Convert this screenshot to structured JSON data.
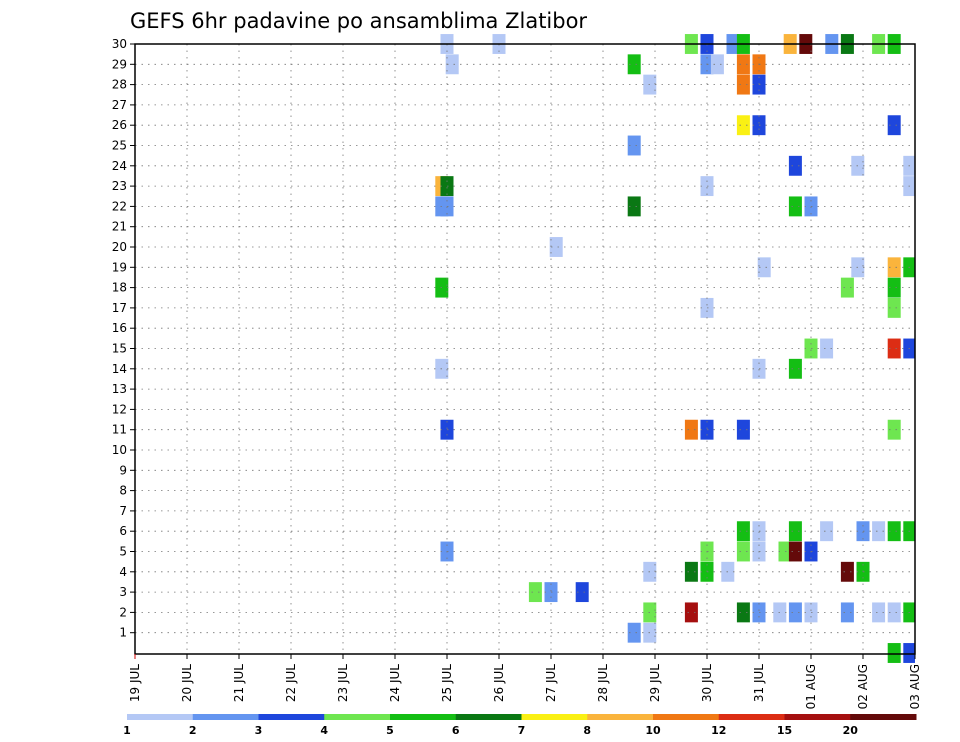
{
  "chart_data": {
    "type": "heatmap",
    "title": "GEFS 6hr padavine po ansamblima Zlatibor",
    "xlabel": "",
    "ylabel": "",
    "x_tick_labels": [
      "19 JUL",
      "20 JUL",
      "21 JUL",
      "22 JUL",
      "23 JUL",
      "24 JUL",
      "25 JUL",
      "26 JUL",
      "27 JUL",
      "28 JUL",
      "29 JUL",
      "30 JUL",
      "31 JUL",
      "01 AUG",
      "02 AUG",
      "03 AUG"
    ],
    "y_tick_labels": [
      "1",
      "2",
      "3",
      "4",
      "5",
      "6",
      "7",
      "8",
      "9",
      "10",
      "11",
      "12",
      "13",
      "14",
      "15",
      "16",
      "17",
      "18",
      "19",
      "20",
      "21",
      "22",
      "23",
      "24",
      "25",
      "26",
      "27",
      "28",
      "29",
      "30"
    ],
    "ylim": [
      0,
      30
    ],
    "grid": true,
    "colorbar": {
      "colors": [
        "#b4c8f5",
        "#6495f0",
        "#1e46dc",
        "#6ee650",
        "#14be14",
        "#0a7814",
        "#faf014",
        "#fab43c",
        "#f07814",
        "#dc2d14",
        "#a50f0f",
        "#640a0a"
      ],
      "labels": [
        "1",
        "2",
        "3",
        "4",
        "5",
        "6",
        "7",
        "8",
        "10",
        "12",
        "15",
        "20"
      ]
    },
    "cells": [
      {
        "day": 6.0,
        "member": 30,
        "level": 1
      },
      {
        "day": 7.0,
        "member": 30,
        "level": 1
      },
      {
        "day": 6.1,
        "member": 29,
        "level": 1
      },
      {
        "day": 8.1,
        "member": 20,
        "level": 1
      },
      {
        "day": 5.9,
        "member": 23,
        "level": 8
      },
      {
        "day": 6.0,
        "member": 23,
        "level": 6
      },
      {
        "day": 5.9,
        "member": 22,
        "level": 2
      },
      {
        "day": 6.0,
        "member": 22,
        "level": 2
      },
      {
        "day": 5.9,
        "member": 18,
        "level": 5
      },
      {
        "day": 5.9,
        "member": 14,
        "level": 1
      },
      {
        "day": 6.0,
        "member": 11,
        "level": 3
      },
      {
        "day": 6.0,
        "member": 5,
        "level": 2
      },
      {
        "day": 7.7,
        "member": 3,
        "level": 4
      },
      {
        "day": 8.0,
        "member": 3,
        "level": 2
      },
      {
        "day": 8.6,
        "member": 3,
        "level": 3
      },
      {
        "day": 9.6,
        "member": 29,
        "level": 5
      },
      {
        "day": 9.9,
        "member": 28,
        "level": 1
      },
      {
        "day": 9.6,
        "member": 25,
        "level": 2
      },
      {
        "day": 9.6,
        "member": 22,
        "level": 6
      },
      {
        "day": 9.9,
        "member": 4,
        "level": 1
      },
      {
        "day": 9.9,
        "member": 2,
        "level": 4
      },
      {
        "day": 9.6,
        "member": 1,
        "level": 2
      },
      {
        "day": 9.9,
        "member": 1,
        "level": 1
      },
      {
        "day": 10.7,
        "member": 30,
        "level": 4
      },
      {
        "day": 11.0,
        "member": 30,
        "level": 3
      },
      {
        "day": 11.0,
        "member": 29,
        "level": 2
      },
      {
        "day": 11.2,
        "member": 29,
        "level": 1
      },
      {
        "day": 11.0,
        "member": 23,
        "level": 1
      },
      {
        "day": 11.0,
        "member": 17,
        "level": 1
      },
      {
        "day": 10.7,
        "member": 11,
        "level": 9
      },
      {
        "day": 11.0,
        "member": 11,
        "level": 3
      },
      {
        "day": 11.0,
        "member": 5,
        "level": 4
      },
      {
        "day": 10.7,
        "member": 4,
        "level": 6
      },
      {
        "day": 11.0,
        "member": 4,
        "level": 5
      },
      {
        "day": 11.4,
        "member": 4,
        "level": 1
      },
      {
        "day": 10.7,
        "member": 2,
        "level": 11
      },
      {
        "day": 11.5,
        "member": 30,
        "level": 2
      },
      {
        "day": 11.7,
        "member": 30,
        "level": 5
      },
      {
        "day": 11.7,
        "member": 29,
        "level": 9
      },
      {
        "day": 12.0,
        "member": 29,
        "level": 9
      },
      {
        "day": 11.7,
        "member": 28,
        "level": 9
      },
      {
        "day": 12.0,
        "member": 28,
        "level": 3
      },
      {
        "day": 11.7,
        "member": 26,
        "level": 7
      },
      {
        "day": 12.0,
        "member": 26,
        "level": 3
      },
      {
        "day": 12.1,
        "member": 19,
        "level": 1
      },
      {
        "day": 11.7,
        "member": 11,
        "level": 3
      },
      {
        "day": 12.0,
        "member": 14,
        "level": 1
      },
      {
        "day": 11.7,
        "member": 6,
        "level": 5
      },
      {
        "day": 12.0,
        "member": 6,
        "level": 1
      },
      {
        "day": 11.7,
        "member": 5,
        "level": 4
      },
      {
        "day": 12.0,
        "member": 5,
        "level": 1
      },
      {
        "day": 11.7,
        "member": 2,
        "level": 6
      },
      {
        "day": 12.0,
        "member": 2,
        "level": 2
      },
      {
        "day": 12.4,
        "member": 2,
        "level": 1
      },
      {
        "day": 12.7,
        "member": 2,
        "level": 2
      },
      {
        "day": 13.0,
        "member": 2,
        "level": 1
      },
      {
        "day": 12.6,
        "member": 30,
        "level": 8
      },
      {
        "day": 12.9,
        "member": 30,
        "level": 12
      },
      {
        "day": 13.4,
        "member": 30,
        "level": 2
      },
      {
        "day": 13.7,
        "member": 30,
        "level": 6
      },
      {
        "day": 12.7,
        "member": 24,
        "level": 3
      },
      {
        "day": 13.9,
        "member": 24,
        "level": 1
      },
      {
        "day": 12.7,
        "member": 22,
        "level": 5
      },
      {
        "day": 13.0,
        "member": 22,
        "level": 2
      },
      {
        "day": 13.7,
        "member": 18,
        "level": 4
      },
      {
        "day": 13.0,
        "member": 15,
        "level": 4
      },
      {
        "day": 13.3,
        "member": 15,
        "level": 1
      },
      {
        "day": 12.7,
        "member": 14,
        "level": 5
      },
      {
        "day": 12.7,
        "member": 6,
        "level": 5
      },
      {
        "day": 13.3,
        "member": 6,
        "level": 1
      },
      {
        "day": 12.5,
        "member": 5,
        "level": 4
      },
      {
        "day": 12.7,
        "member": 5,
        "level": 12
      },
      {
        "day": 13.0,
        "member": 5,
        "level": 3
      },
      {
        "day": 13.7,
        "member": 4,
        "level": 12
      },
      {
        "day": 14.0,
        "member": 4,
        "level": 5
      },
      {
        "day": 13.7,
        "member": 2,
        "level": 2
      },
      {
        "day": 14.0,
        "member": 6,
        "level": 2
      },
      {
        "day": 13.9,
        "member": 19,
        "level": 1
      },
      {
        "day": 14.3,
        "member": 30,
        "level": 4
      },
      {
        "day": 14.6,
        "member": 30,
        "level": 5
      },
      {
        "day": 14.6,
        "member": 26,
        "level": 3
      },
      {
        "day": 14.9,
        "member": 24,
        "level": 1
      },
      {
        "day": 14.9,
        "member": 23,
        "level": 1
      },
      {
        "day": 14.6,
        "member": 19,
        "level": 8
      },
      {
        "day": 14.9,
        "member": 19,
        "level": 5
      },
      {
        "day": 14.6,
        "member": 18,
        "level": 5
      },
      {
        "day": 14.6,
        "member": 17,
        "level": 4
      },
      {
        "day": 14.6,
        "member": 15,
        "level": 10
      },
      {
        "day": 14.9,
        "member": 15,
        "level": 3
      },
      {
        "day": 14.6,
        "member": 11,
        "level": 4
      },
      {
        "day": 14.3,
        "member": 6,
        "level": 1
      },
      {
        "day": 14.6,
        "member": 6,
        "level": 5
      },
      {
        "day": 14.9,
        "member": 6,
        "level": 5
      },
      {
        "day": 14.3,
        "member": 2,
        "level": 1
      },
      {
        "day": 14.6,
        "member": 2,
        "level": 1
      },
      {
        "day": 14.9,
        "member": 2,
        "level": 5
      },
      {
        "day": 14.6,
        "member": 0,
        "level": 5
      },
      {
        "day": 14.9,
        "member": 0,
        "level": 3
      }
    ]
  }
}
